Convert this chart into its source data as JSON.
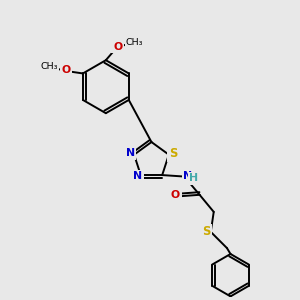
{
  "background_color": "#e8e8e8",
  "atom_colors": {
    "N": "#0000cc",
    "O": "#cc0000",
    "S": "#ccaa00",
    "H": "#44aaaa",
    "C": "#000000"
  },
  "bond_color": "#000000",
  "line_width": 1.4,
  "figsize": [
    3.0,
    3.0
  ],
  "dpi": 100
}
